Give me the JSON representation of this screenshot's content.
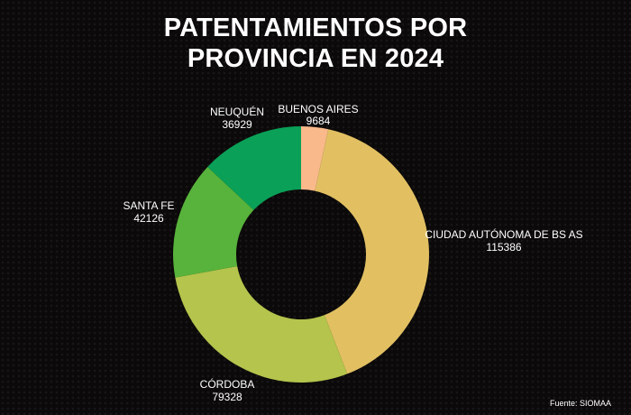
{
  "chart_data": {
    "type": "pie",
    "variant": "donut",
    "title": [
      "PATENTAMIENTOS POR",
      "PROVINCIA EN 2024"
    ],
    "slices": [
      {
        "label": "BUENOS AIRES",
        "value": 9684,
        "value_text": "9684",
        "color": "#f9b98a"
      },
      {
        "label": "CIUDAD AUTÓNOMA DE BS AS",
        "value": 115386,
        "value_text": "115386",
        "color": "#e2c062"
      },
      {
        "label": "CÓRDOBA",
        "value": 79328,
        "value_text": "79328",
        "color": "#b4c44c"
      },
      {
        "label": "SANTA FE",
        "value": 42126,
        "value_text": "42126",
        "color": "#57b33b"
      },
      {
        "label": "NEUQUÉN",
        "value": 36929,
        "value_text": "36929",
        "color": "#0aa057"
      }
    ],
    "start": "top",
    "direction": "clockwise",
    "legend": "none",
    "source_note": "Fuente:  SIOMAA"
  }
}
